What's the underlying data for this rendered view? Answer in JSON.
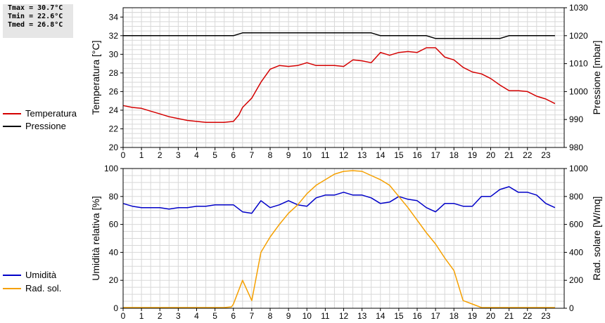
{
  "stats": {
    "tmax": "Tmax = 30.7°C",
    "tmin": "Tmin = 22.6°C",
    "tmed": "Tmed = 26.8°C"
  },
  "legend": {
    "temperatura": {
      "label": "Temperatura",
      "color": "#d40000"
    },
    "pressione": {
      "label": "Pressione",
      "color": "#000000"
    },
    "umidita": {
      "label": "Umidità",
      "color": "#0000c8"
    },
    "rad_sol": {
      "label": "Rad. sol.",
      "color": "#f5a000"
    }
  },
  "chart_data": [
    {
      "type": "line",
      "ylabel_left": "Temperatura [°C]",
      "ylabel_right": "Pressione [mbar]",
      "xlim": [
        0,
        24
      ],
      "xticks": [
        0,
        1,
        2,
        3,
        4,
        5,
        6,
        7,
        8,
        9,
        10,
        11,
        12,
        13,
        14,
        15,
        16,
        17,
        18,
        19,
        20,
        21,
        22,
        23
      ],
      "ylim_left": [
        20,
        35
      ],
      "yticks_left": [
        20,
        22,
        24,
        26,
        28,
        30,
        32,
        34
      ],
      "ylim_right": [
        980,
        1030
      ],
      "yticks_right": [
        980,
        990,
        1000,
        1010,
        1020,
        1030
      ],
      "grid": true,
      "series": [
        {
          "name": "Temperatura",
          "axis": "left",
          "color": "#d40000",
          "x": [
            0,
            0.5,
            1,
            1.5,
            2,
            2.5,
            3,
            3.5,
            4,
            4.5,
            5,
            5.5,
            6,
            6.3,
            6.5,
            7,
            7.5,
            8,
            8.5,
            9,
            9.5,
            10,
            10.5,
            11,
            11.5,
            12,
            12.5,
            13,
            13.5,
            14,
            14.5,
            15,
            15.5,
            16,
            16.5,
            17,
            17.5,
            18,
            18.5,
            19,
            19.5,
            20,
            20.5,
            21,
            21.5,
            22,
            22.5,
            23,
            23.5
          ],
          "values": [
            24.5,
            24.3,
            24.2,
            23.9,
            23.6,
            23.3,
            23.1,
            22.9,
            22.8,
            22.7,
            22.7,
            22.7,
            22.8,
            23.5,
            24.3,
            25.3,
            27.0,
            28.4,
            28.8,
            28.7,
            28.8,
            29.1,
            28.8,
            28.8,
            28.8,
            28.7,
            29.4,
            29.3,
            29.1,
            30.2,
            29.9,
            30.2,
            30.3,
            30.2,
            30.7,
            30.7,
            29.7,
            29.4,
            28.6,
            28.1,
            27.9,
            27.4,
            26.7,
            26.1,
            26.1,
            26.0,
            25.5,
            25.2,
            24.7
          ]
        },
        {
          "name": "Pressione",
          "axis": "right",
          "color": "#000000",
          "x": [
            0,
            0.5,
            1,
            1.5,
            2,
            2.5,
            3,
            3.5,
            4,
            4.5,
            5,
            5.5,
            6,
            6.5,
            7,
            7.5,
            8,
            8.5,
            9,
            9.5,
            10,
            10.5,
            11,
            11.5,
            12,
            12.5,
            13,
            13.5,
            14,
            14.5,
            15,
            15.5,
            16,
            16.5,
            17,
            17.5,
            18,
            18.5,
            19,
            19.5,
            20,
            20.5,
            21,
            21.5,
            22,
            22.5,
            23,
            23.5
          ],
          "values": [
            1020,
            1020,
            1020,
            1020,
            1020,
            1020,
            1020,
            1020,
            1020,
            1020,
            1020,
            1020,
            1020,
            1021,
            1021,
            1021,
            1021,
            1021,
            1021,
            1021,
            1021,
            1021,
            1021,
            1021,
            1021,
            1021,
            1021,
            1021,
            1020,
            1020,
            1020,
            1020,
            1020,
            1020,
            1019,
            1019,
            1019,
            1019,
            1019,
            1019,
            1019,
            1019,
            1020,
            1020,
            1020,
            1020,
            1020,
            1020
          ]
        }
      ]
    },
    {
      "type": "line",
      "ylabel_left": "Umidità relativa [%]",
      "ylabel_right": "Rad. solare [W/mq]",
      "xlim": [
        0,
        24
      ],
      "xticks": [
        0,
        1,
        2,
        3,
        4,
        5,
        6,
        7,
        8,
        9,
        10,
        11,
        12,
        13,
        14,
        15,
        16,
        17,
        18,
        19,
        20,
        21,
        22,
        23
      ],
      "ylim_left": [
        0,
        100
      ],
      "yticks_left": [
        0,
        20,
        40,
        60,
        80,
        100
      ],
      "ylim_right": [
        0,
        1000
      ],
      "yticks_right": [
        0,
        200,
        400,
        600,
        800,
        1000
      ],
      "grid": true,
      "series": [
        {
          "name": "Umidità",
          "axis": "left",
          "color": "#0000c8",
          "x": [
            0,
            0.5,
            1,
            1.5,
            2,
            2.5,
            3,
            3.5,
            4,
            4.5,
            5,
            5.5,
            6,
            6.5,
            7,
            7.5,
            8,
            8.5,
            9,
            9.5,
            10,
            10.5,
            11,
            11.5,
            12,
            12.5,
            13,
            13.5,
            14,
            14.5,
            15,
            15.5,
            16,
            16.5,
            17,
            17.5,
            18,
            18.5,
            19,
            19.5,
            20,
            20.5,
            21,
            21.5,
            22,
            22.5,
            23,
            23.5
          ],
          "values": [
            75,
            73,
            72,
            72,
            72,
            71,
            72,
            72,
            73,
            73,
            74,
            74,
            74,
            69,
            68,
            77,
            72,
            74,
            77,
            74,
            73,
            79,
            81,
            81,
            83,
            81,
            81,
            79,
            75,
            76,
            80,
            78,
            77,
            72,
            69,
            75,
            75,
            73,
            73,
            80,
            80,
            85,
            87,
            83,
            83,
            81,
            75,
            72
          ]
        },
        {
          "name": "Rad. sol.",
          "axis": "right",
          "color": "#f5a000",
          "x": [
            0,
            0.5,
            1,
            1.5,
            2,
            2.5,
            3,
            3.5,
            4,
            4.5,
            5,
            5.5,
            5.9,
            6,
            6.5,
            7,
            7.5,
            8,
            8.5,
            9,
            9.5,
            10,
            10.5,
            11,
            11.5,
            12,
            12.5,
            13,
            13.5,
            14,
            14.5,
            15,
            15.5,
            16,
            16.5,
            17,
            17.5,
            18,
            18.5,
            19,
            19.5,
            20,
            20.5,
            21,
            21.5,
            22,
            22.5,
            23,
            23.5
          ],
          "values": [
            5,
            5,
            5,
            5,
            5,
            5,
            5,
            5,
            5,
            5,
            5,
            5,
            10,
            30,
            200,
            55,
            400,
            510,
            600,
            680,
            740,
            820,
            880,
            920,
            960,
            980,
            985,
            980,
            950,
            920,
            880,
            800,
            720,
            630,
            540,
            460,
            360,
            270,
            55,
            30,
            5,
            5,
            5,
            5,
            5,
            5,
            5,
            5,
            5
          ]
        }
      ]
    }
  ]
}
